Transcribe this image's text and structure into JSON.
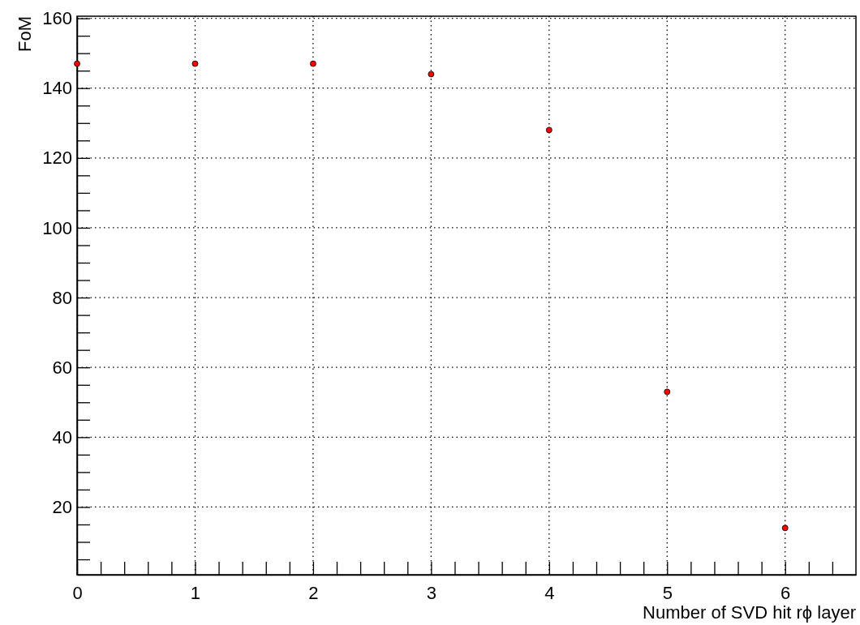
{
  "chart_data": {
    "type": "scatter",
    "xlabel": "Number of SVD hit rϕ layer",
    "ylabel": "FoM",
    "x": [
      0,
      1,
      2,
      3,
      4,
      5,
      6
    ],
    "values": [
      147,
      147,
      147,
      144,
      128,
      53,
      14
    ],
    "color": "#ff0000",
    "marker": "circle",
    "grid": true,
    "xlim": [
      0,
      6.6
    ],
    "xticks": [
      0,
      {
        "value": 0.2,
        "label": null
      },
      {
        "value": 0.4,
        "label": null
      },
      {
        "value": 0.6,
        "label": null
      },
      {
        "value": 0.8,
        "label": null
      },
      1,
      {
        "value": 1.2,
        "label": null
      },
      {
        "value": 1.4,
        "label": null
      },
      {
        "value": 1.6,
        "label": null
      },
      {
        "value": 1.8,
        "label": null
      },
      2,
      {
        "value": 2.2,
        "label": null
      },
      {
        "value": 2.4,
        "label": null
      },
      {
        "value": 2.6,
        "label": null
      },
      {
        "value": 2.8,
        "label": null
      },
      3,
      {
        "value": 3.2,
        "label": null
      },
      {
        "value": 3.4,
        "label": null
      },
      {
        "value": 3.6,
        "label": null
      },
      {
        "value": 3.8,
        "label": null
      },
      4,
      {
        "value": 4.2,
        "label": null
      },
      {
        "value": 4.4,
        "label": null
      },
      {
        "value": 4.6,
        "label": null
      },
      {
        "value": 4.8,
        "label": null
      },
      5,
      {
        "value": 5.2,
        "label": null
      },
      {
        "value": 5.4,
        "label": null
      },
      {
        "value": 5.6,
        "label": null
      },
      {
        "value": 5.8,
        "label": null
      },
      6,
      {
        "value": 6.2,
        "label": null
      },
      {
        "value": 6.4,
        "label": null
      }
    ],
    "ylim": [
      0.6,
      160.6
    ],
    "yticks": [
      {
        "value": 5,
        "label": null
      },
      {
        "value": 10,
        "label": null
      },
      {
        "value": 15,
        "label": null
      },
      20,
      {
        "value": 25,
        "label": null
      },
      {
        "value": 30,
        "label": null
      },
      {
        "value": 35,
        "label": null
      },
      40,
      {
        "value": 45,
        "label": null
      },
      {
        "value": 50,
        "label": null
      },
      {
        "value": 55,
        "label": null
      },
      60,
      {
        "value": 65,
        "label": null
      },
      {
        "value": 70,
        "label": null
      },
      {
        "value": 75,
        "label": null
      },
      80,
      {
        "value": 85,
        "label": null
      },
      {
        "value": 90,
        "label": null
      },
      {
        "value": 95,
        "label": null
      },
      100,
      {
        "value": 105,
        "label": null
      },
      {
        "value": 110,
        "label": null
      },
      {
        "value": 115,
        "label": null
      },
      120,
      {
        "value": 125,
        "label": null
      },
      {
        "value": 130,
        "label": null
      },
      {
        "value": 135,
        "label": null
      },
      140,
      {
        "value": 145,
        "label": null
      },
      {
        "value": 150,
        "label": null
      },
      {
        "value": 155,
        "label": null
      },
      160
    ]
  }
}
